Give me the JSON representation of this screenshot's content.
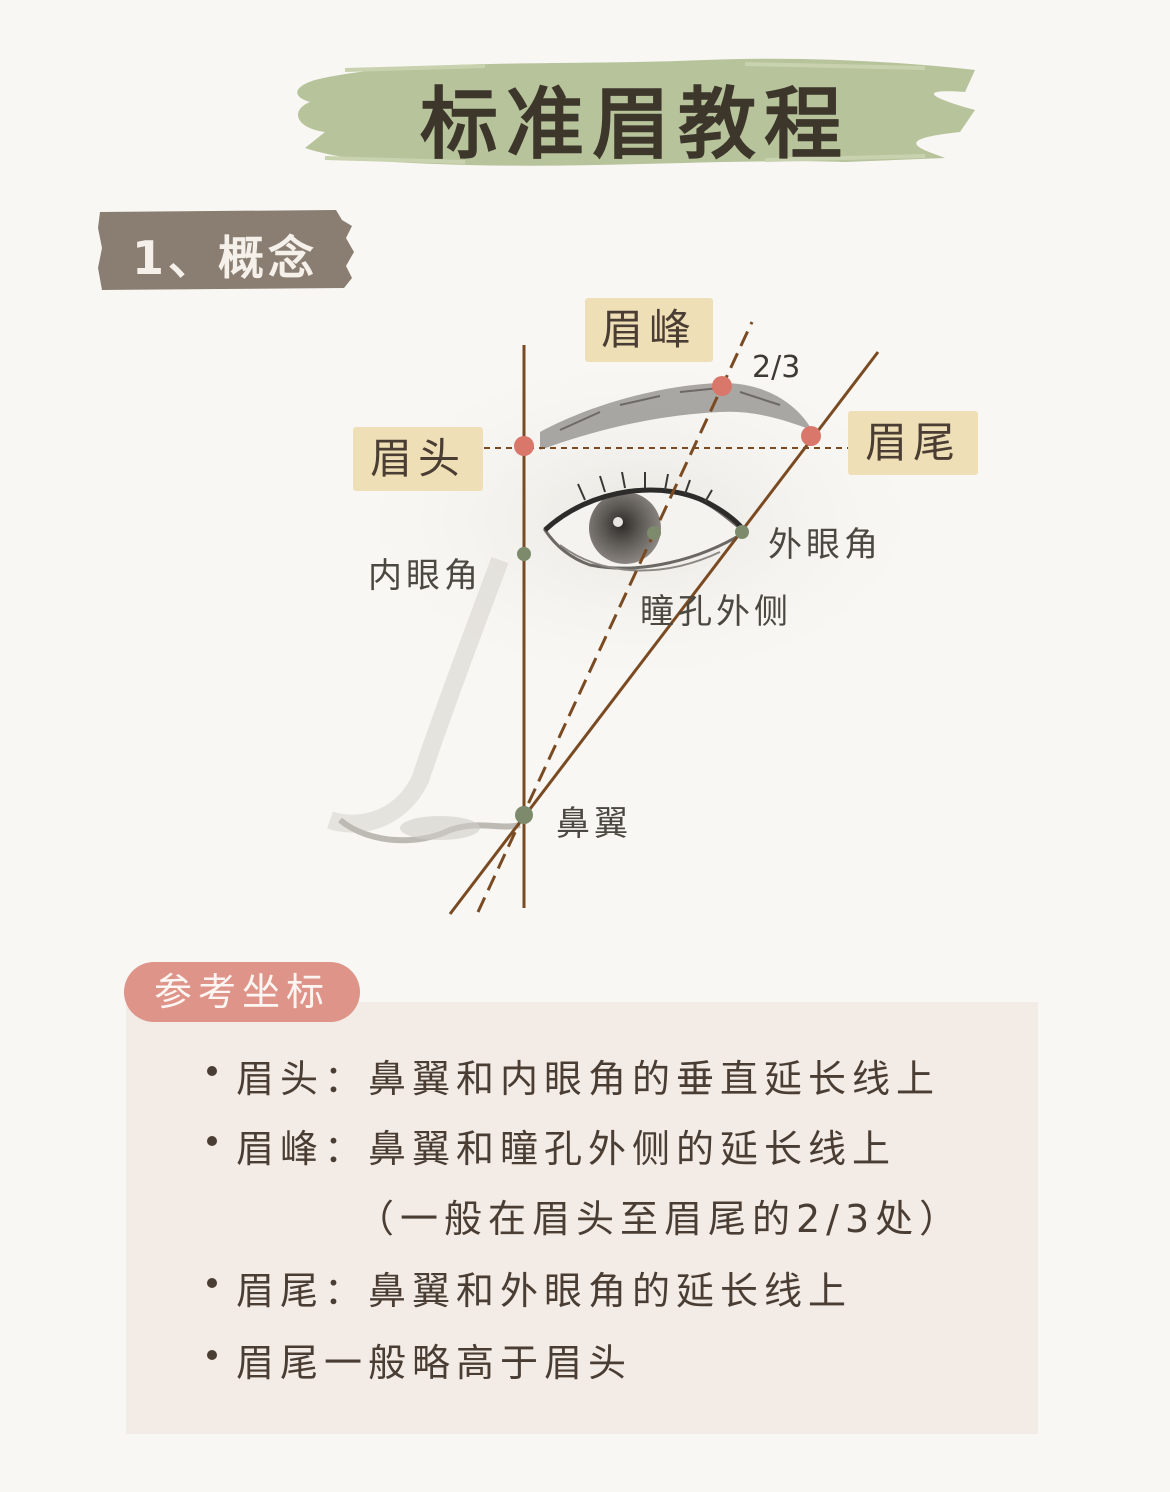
{
  "title": "标准眉教程",
  "section": "1、概念",
  "labels": {
    "brow_head": "眉头",
    "brow_peak": "眉峰",
    "brow_tail": "眉尾",
    "inner_corner": "内眼角",
    "outer_corner": "外眼角",
    "pupil_outer": "瞳孔外侧",
    "nose_wing": "鼻翼",
    "fraction": "2/3"
  },
  "reference": {
    "tag": "参考坐标",
    "items": [
      "眉头：鼻翼和内眼角的垂直延长线上",
      "眉峰：鼻翼和瞳孔外侧的延长线上",
      "（一般在眉头至眉尾的2/3处）",
      "眉尾：鼻翼和外眼角的延长线上",
      "眉尾一般略高于眉头"
    ]
  },
  "colors": {
    "title_brush": "#b7c39a",
    "section_tag": "#8a7e72",
    "guide_line": "#7a4a22",
    "brow_point": "#d9786a",
    "eye_point": "#7d8a6c",
    "label_bg": "#efdfb6",
    "ref_tag": "#de9489",
    "ref_box": "#f2ebe6"
  }
}
